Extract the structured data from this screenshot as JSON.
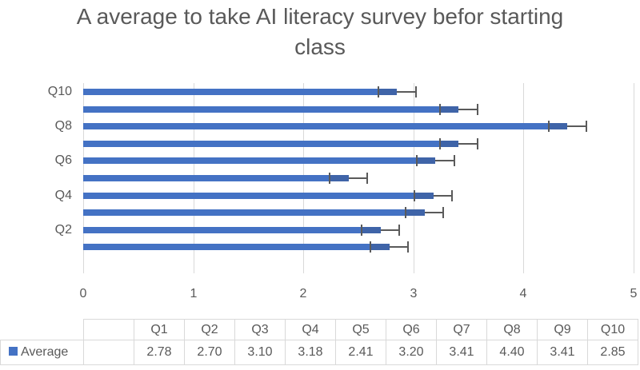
{
  "chart_data": {
    "type": "bar",
    "orientation": "horizontal",
    "title": "A average to take AI literacy survey befor starting class",
    "title_lines": [
      "A average to take AI literacy survey befor starting",
      "class"
    ],
    "categories": [
      "Q1",
      "Q2",
      "Q3",
      "Q4",
      "Q5",
      "Q6",
      "Q7",
      "Q8",
      "Q9",
      "Q10"
    ],
    "y_tick_labels_shown": [
      "Q2",
      "Q4",
      "Q6",
      "Q8",
      "Q10"
    ],
    "series": [
      {
        "name": "Average",
        "color": "#4472C4",
        "values": [
          2.78,
          2.7,
          3.1,
          3.18,
          2.41,
          3.2,
          3.41,
          4.4,
          3.41,
          2.85
        ],
        "error_bars": [
          0.17,
          0.17,
          0.17,
          0.17,
          0.17,
          0.17,
          0.17,
          0.17,
          0.17,
          0.17
        ]
      }
    ],
    "xlabel": "",
    "ylabel": "",
    "xlim": [
      0,
      5
    ],
    "x_ticks": [
      "0",
      "1",
      "2",
      "3",
      "4",
      "5"
    ],
    "grid": true,
    "legend_position": "data-table",
    "data_table": {
      "headers": [
        "Q1",
        "Q2",
        "Q3",
        "Q4",
        "Q5",
        "Q6",
        "Q7",
        "Q8",
        "Q9",
        "Q10"
      ],
      "row_label": "Average",
      "row_values": [
        "2.78",
        "2.70",
        "3.10",
        "3.18",
        "2.41",
        "3.20",
        "3.41",
        "4.40",
        "3.41",
        "2.85"
      ]
    }
  }
}
